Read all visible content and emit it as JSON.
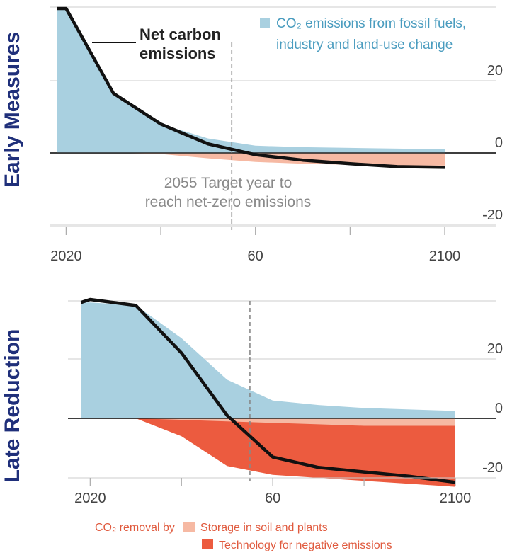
{
  "side_labels": {
    "early": "Early Measures",
    "late": "Late Reduction"
  },
  "colors": {
    "fossil": "#a9d0e0",
    "soil": "#f6b9a3",
    "tech": "#ec5b3f",
    "net": "#111111",
    "grid": "#cccccc",
    "legend_text_blue": "#4a9cbf",
    "side_label": "#1f2f7a",
    "removal_text": "#e05a3e"
  },
  "panel1": {
    "legend_fossil": "CO₂ emissions from fossil fuels, industry and land-use change",
    "net_label_line1": "Net carbon",
    "net_label_line2": "emissions",
    "target_line1": "2055 Target year to",
    "target_line2": "reach net-zero emissions"
  },
  "legend_bottom": {
    "removal_by": "CO₂ removal by",
    "storage": "Storage in soil and plants",
    "technology": "Technology for negative emissions"
  },
  "chart_data": [
    {
      "type": "area",
      "x_tick_labels": [
        "2020",
        "60",
        "2100"
      ],
      "y_tick_labels": [
        "20",
        "0",
        "-20"
      ],
      "xlim": [
        2018,
        2108
      ],
      "ylim": [
        -21,
        40
      ],
      "vline": 2055,
      "series": [
        {
          "name": "CO₂ emissions from fossil fuels, industry and land-use change",
          "x": [
            2018,
            2020,
            2030,
            2040,
            2050,
            2060,
            2070,
            2080,
            2090,
            2100
          ],
          "values": [
            40,
            40,
            17,
            8,
            4,
            2,
            1.6,
            1.4,
            1.2,
            1
          ]
        },
        {
          "name": "Storage in soil and plants",
          "x": [
            2018,
            2020,
            2030,
            2040,
            2050,
            2060,
            2070,
            2080,
            2090,
            2100
          ],
          "values": [
            0,
            0,
            0,
            -0.3,
            -1.5,
            -2.5,
            -3,
            -3.3,
            -3.5,
            -3.5
          ]
        },
        {
          "name": "Net carbon emissions",
          "x": [
            2018,
            2020,
            2030,
            2040,
            2050,
            2060,
            2070,
            2080,
            2090,
            2100
          ],
          "values": [
            40,
            40,
            16.5,
            8,
            2.5,
            -0.5,
            -2,
            -3,
            -3.8,
            -4
          ]
        }
      ]
    },
    {
      "type": "area",
      "x_tick_labels": [
        "2020",
        "60",
        "2100"
      ],
      "y_tick_labels": [
        "20",
        "0",
        "-20"
      ],
      "xlim": [
        2017,
        2104
      ],
      "ylim": [
        -21,
        40
      ],
      "vline": 2055,
      "series": [
        {
          "name": "CO₂ emissions from fossil fuels, industry and land-use change",
          "x": [
            2018,
            2020,
            2030,
            2040,
            2050,
            2060,
            2070,
            2080,
            2090,
            2100
          ],
          "values": [
            39,
            39,
            38,
            27,
            13,
            6,
            4.5,
            3.5,
            3,
            2.5
          ]
        },
        {
          "name": "Technology for negative emissions",
          "x": [
            2018,
            2020,
            2030,
            2040,
            2050,
            2060,
            2070,
            2080,
            2090,
            2100
          ],
          "values": [
            0,
            0,
            0,
            -6,
            -16,
            -19,
            -20,
            -21,
            -22,
            -23
          ]
        },
        {
          "name": "Storage in soil and plants",
          "x": [
            2018,
            2020,
            2030,
            2040,
            2050,
            2060,
            2070,
            2080,
            2090,
            2100
          ],
          "values": [
            0,
            0,
            0,
            -0.5,
            -1,
            -1.5,
            -2,
            -2.5,
            -2.5,
            -2.5
          ]
        },
        {
          "name": "Net carbon emissions",
          "x": [
            2018,
            2020,
            2030,
            2040,
            2050,
            2060,
            2070,
            2080,
            2090,
            2100
          ],
          "values": [
            39,
            40,
            38,
            22,
            1,
            -13,
            -16.5,
            -18,
            -19.5,
            -21.5
          ]
        }
      ]
    }
  ]
}
